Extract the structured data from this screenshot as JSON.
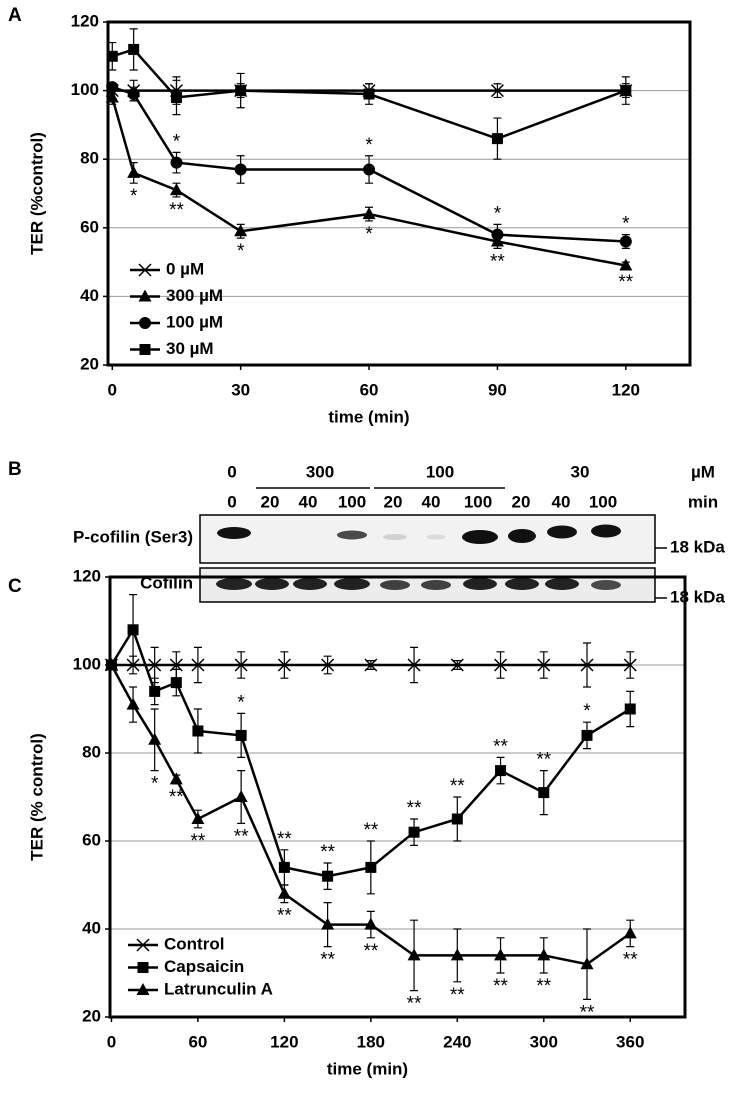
{
  "chart_data": [
    {
      "type": "line",
      "panel": "A",
      "xlabel": "time (min)",
      "ylabel": "TER (%control)",
      "x": [
        0,
        5,
        15,
        30,
        60,
        90,
        120
      ],
      "xlim": [
        -1,
        135
      ],
      "xticks": [
        0,
        30,
        60,
        90,
        120
      ],
      "ylim": [
        20,
        120
      ],
      "yticks": [
        20,
        40,
        60,
        80,
        100,
        120
      ],
      "grid": true,
      "legend": "bottom-left",
      "series": [
        {
          "name": "0 µM",
          "color": "#000000",
          "marker": "x",
          "values": [
            100,
            100,
            100,
            100,
            100,
            100,
            100
          ],
          "errors": [
            1,
            3,
            4,
            2,
            2,
            2,
            2
          ],
          "significance": [
            null,
            null,
            null,
            null,
            null,
            null,
            null
          ]
        },
        {
          "name": "300 µM",
          "color": "#000000",
          "marker": "triangle",
          "values": [
            98,
            76,
            71,
            59,
            64,
            56,
            49
          ],
          "errors": [
            2,
            3,
            2,
            2,
            2,
            2,
            1
          ],
          "significance": [
            null,
            "*",
            "**",
            "*",
            "*",
            "**",
            "**"
          ]
        },
        {
          "name": "100 µM",
          "color": "#000000",
          "marker": "circle",
          "values": [
            101,
            99,
            79,
            77,
            77,
            58,
            56
          ],
          "errors": [
            1,
            2,
            3,
            4,
            4,
            3,
            2
          ],
          "significance": [
            null,
            null,
            "*",
            null,
            "*",
            "*",
            "*"
          ]
        },
        {
          "name": "30 µM",
          "color": "#000000",
          "marker": "square",
          "values": [
            110,
            112,
            98,
            100,
            99,
            86,
            100
          ],
          "errors": [
            4,
            6,
            5,
            5,
            3,
            6,
            4
          ],
          "significance": [
            null,
            null,
            null,
            null,
            null,
            null,
            null
          ]
        }
      ]
    },
    {
      "type": "line",
      "panel": "C",
      "xlabel": "time (min)",
      "ylabel": "TER (% control)",
      "x": [
        0,
        15,
        30,
        45,
        60,
        90,
        120,
        150,
        180,
        210,
        240,
        270,
        300,
        330,
        360
      ],
      "xlim": [
        -1,
        398
      ],
      "xticks": [
        0,
        60,
        120,
        180,
        240,
        300,
        360
      ],
      "ylim": [
        20,
        120
      ],
      "yticks": [
        20,
        40,
        60,
        80,
        100,
        120
      ],
      "grid": true,
      "legend": "bottom-left",
      "series": [
        {
          "name": "Control",
          "color": "#000000",
          "marker": "x",
          "values": [
            100,
            100,
            100,
            100,
            100,
            100,
            100,
            100,
            100,
            100,
            100,
            100,
            100,
            100,
            100
          ],
          "errors": [
            0,
            2,
            4,
            3,
            4,
            3,
            3,
            2,
            1,
            4,
            1,
            3,
            3,
            5,
            3
          ],
          "significance": [
            null,
            null,
            null,
            null,
            null,
            null,
            null,
            null,
            null,
            null,
            null,
            null,
            null,
            null,
            null
          ]
        },
        {
          "name": "Capsaicin",
          "color": "#000000",
          "marker": "square",
          "values": [
            100,
            108,
            94,
            96,
            85,
            84,
            54,
            52,
            54,
            62,
            65,
            76,
            71,
            84,
            90
          ],
          "errors": [
            1,
            8,
            3,
            3,
            5,
            5,
            4,
            3,
            6,
            3,
            5,
            3,
            5,
            3,
            4
          ],
          "significance": [
            null,
            null,
            null,
            null,
            null,
            "*",
            "**",
            "**",
            "**",
            "**",
            "**",
            "**",
            "**",
            "*",
            null
          ]
        },
        {
          "name": "Latrunculin A",
          "color": "#000000",
          "marker": "triangle",
          "values": [
            100,
            91,
            83,
            74,
            65,
            70,
            48,
            41,
            41,
            34,
            34,
            34,
            34,
            32,
            39
          ],
          "errors": [
            1,
            4,
            7,
            1,
            2,
            6,
            2,
            5,
            3,
            8,
            6,
            4,
            4,
            8,
            3
          ],
          "significance": [
            null,
            null,
            "*",
            "**",
            "**",
            "**",
            "**",
            "**",
            "**",
            "**",
            "**",
            "**",
            "**",
            "**",
            "**"
          ]
        }
      ]
    }
  ],
  "blot": {
    "panel": "B",
    "doses": [
      "0",
      "300",
      "100",
      "30"
    ],
    "dose_unit": "µM",
    "times": [
      "0",
      "20",
      "40",
      "100",
      "20",
      "40",
      "100",
      "20",
      "40",
      "100"
    ],
    "time_unit": "min",
    "rows": [
      "P-cofilin (Ser3)",
      "Cofilin"
    ],
    "size_markers": [
      "18 kDa",
      "18 kDa"
    ]
  }
}
